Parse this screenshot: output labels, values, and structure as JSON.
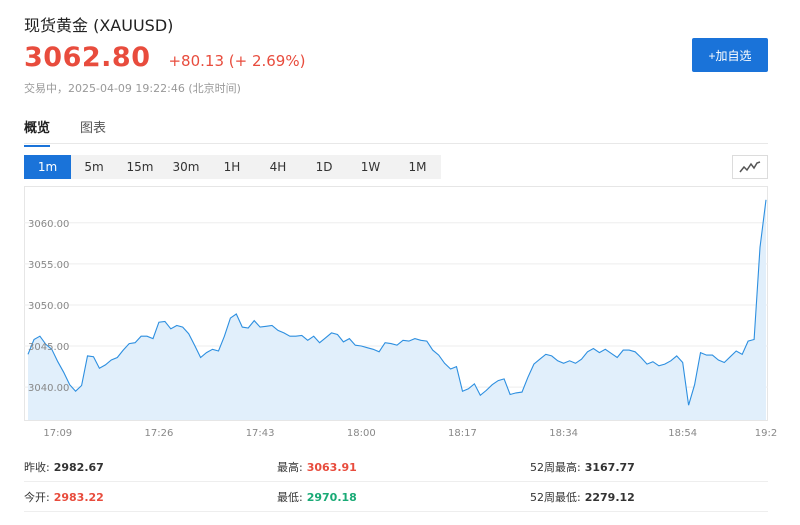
{
  "header": {
    "title": "现货黄金 (XAUUSD)",
    "price": "3062.80",
    "change": "+80.13 (+ 2.69%)",
    "status": "交易中，2025-04-09 19:22:46 (北京时间)",
    "add_button": "+加自选"
  },
  "tabs": [
    {
      "label": "概览",
      "active": true
    },
    {
      "label": "图表",
      "active": false
    }
  ],
  "periods": [
    "1m",
    "5m",
    "15m",
    "30m",
    "1H",
    "4H",
    "1D",
    "1W",
    "1M"
  ],
  "active_period": "1m",
  "chart_type_icon": "line-chart-icon",
  "colors": {
    "accent": "#1a73d9",
    "up": "#e84c3d",
    "down": "#1aaa76",
    "area_fill": "#e1effb",
    "line": "#2d8fe0"
  },
  "chart_data": {
    "type": "area",
    "title": "",
    "xlabel": "",
    "ylabel": "",
    "ylim": [
      3036.0,
      3063.5
    ],
    "y_ticks": [
      "3040.00",
      "3045.00",
      "3050.00",
      "3055.00",
      "3060.00"
    ],
    "x_ticks": [
      "17:09",
      "17:26",
      "17:43",
      "18:00",
      "18:17",
      "18:34",
      "18:54",
      "19:2"
    ],
    "x_tick_index": [
      5,
      22,
      39,
      56,
      73,
      90,
      110,
      124
    ],
    "series": [
      {
        "values": [
          3044.0,
          3045.8,
          3046.2,
          3045.2,
          3044.6,
          3043.1,
          3041.8,
          3040.3,
          3039.5,
          3040.2,
          3043.8,
          3043.7,
          3042.3,
          3042.7,
          3043.3,
          3043.6,
          3044.5,
          3045.3,
          3045.4,
          3046.2,
          3046.2,
          3045.9,
          3047.9,
          3048.0,
          3047.1,
          3047.5,
          3047.3,
          3046.5,
          3045.1,
          3043.6,
          3044.2,
          3044.6,
          3044.4,
          3046.2,
          3048.4,
          3048.9,
          3047.3,
          3047.2,
          3048.1,
          3047.3,
          3047.4,
          3047.5,
          3046.9,
          3046.6,
          3046.2,
          3046.2,
          3046.3,
          3045.7,
          3046.2,
          3045.4,
          3046.0,
          3046.6,
          3046.4,
          3045.5,
          3045.9,
          3045.1,
          3045.0,
          3044.8,
          3044.6,
          3044.3,
          3045.4,
          3045.3,
          3045.1,
          3045.7,
          3045.6,
          3045.9,
          3045.7,
          3045.6,
          3044.5,
          3043.9,
          3042.9,
          3042.2,
          3042.5,
          3039.5,
          3039.8,
          3040.4,
          3039.0,
          3039.6,
          3040.3,
          3040.8,
          3041.0,
          3039.1,
          3039.3,
          3039.4,
          3041.2,
          3042.8,
          3043.4,
          3044.0,
          3043.8,
          3043.2,
          3042.9,
          3043.2,
          3042.9,
          3043.4,
          3044.3,
          3044.7,
          3044.2,
          3044.6,
          3044.1,
          3043.6,
          3044.5,
          3044.5,
          3044.3,
          3043.6,
          3042.8,
          3043.1,
          3042.6,
          3042.8,
          3043.2,
          3043.8,
          3043.0,
          3037.8,
          3040.3,
          3044.2,
          3043.9,
          3043.9,
          3043.3,
          3043.0,
          3043.7,
          3044.4,
          3044.0,
          3045.6,
          3045.8,
          3057.0,
          3062.8
        ]
      }
    ]
  },
  "stats": [
    [
      {
        "label": "昨收:",
        "value": "2982.67",
        "tone": "neutral"
      },
      {
        "label": "最高:",
        "value": "3063.91",
        "tone": "up"
      },
      {
        "label": "52周最高:",
        "value": "3167.77",
        "tone": "neutral"
      }
    ],
    [
      {
        "label": "今开:",
        "value": "2983.22",
        "tone": "up"
      },
      {
        "label": "最低:",
        "value": "2970.18",
        "tone": "down"
      },
      {
        "label": "52周最低:",
        "value": "2279.12",
        "tone": "neutral"
      }
    ]
  ]
}
